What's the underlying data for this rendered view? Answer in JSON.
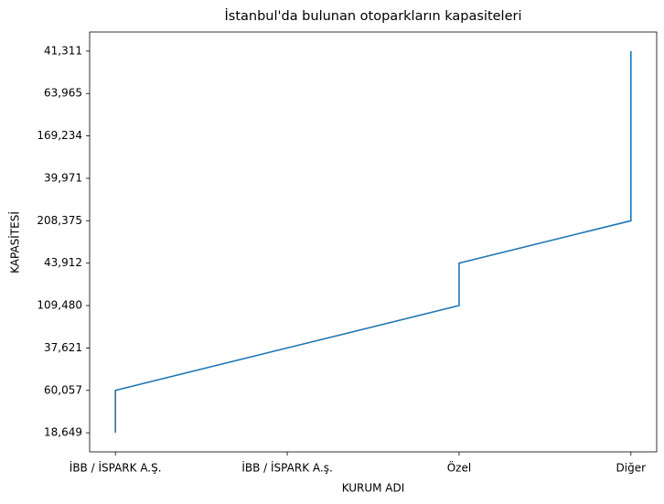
{
  "chart_data": {
    "type": "line",
    "title": "İstanbul'da bulunan otoparkların kapasiteleri",
    "x_label": "KURUM ADI",
    "y_label": "KAPASİTESİ",
    "series": [
      {
        "color": "#1f77b4",
        "x": [
          "İBB / İSPARK A.Ş.",
          "İBB / İSPARK A.Ş.",
          "İBB / İSPARK A.ş.",
          "Özel",
          "Özel",
          "Diğer",
          "Diğer",
          "Diğer",
          "Diğer",
          "Diğer"
        ],
        "values": [
          "18,649",
          "60,057",
          "37,621",
          "109,480",
          "43,912",
          "208,375",
          "39,971",
          "169,234",
          "63,965",
          "41,311 "
        ]
      }
    ]
  }
}
